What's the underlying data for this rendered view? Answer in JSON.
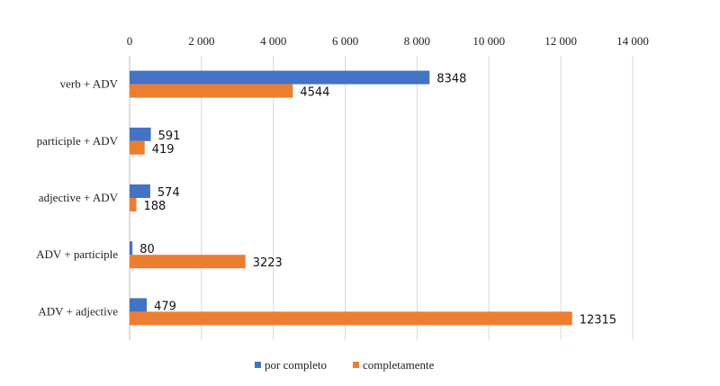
{
  "chart_data": {
    "type": "bar",
    "orientation": "horizontal",
    "categories": [
      "verb + ADV",
      "participle + ADV",
      "adjective + ADV",
      "ADV + participle",
      "ADV + adjective"
    ],
    "series": [
      {
        "name": "por completo",
        "color": "#4472C4",
        "values": [
          8348,
          591,
          574,
          80,
          479
        ]
      },
      {
        "name": "completamente",
        "color": "#ED7D31",
        "values": [
          4544,
          419,
          188,
          3223,
          12315
        ]
      }
    ],
    "xlim": [
      0,
      14000
    ],
    "xticks": [
      0,
      2000,
      4000,
      6000,
      8000,
      10000,
      12000,
      14000
    ],
    "xtick_labels": [
      "0",
      "2 000",
      "4 000",
      "6 000",
      "8 000",
      "10 000",
      "12 000",
      "14 000"
    ],
    "x_axis_position": "top",
    "grid": true,
    "legend_position": "bottom",
    "title": "",
    "xlabel": "",
    "ylabel": ""
  }
}
